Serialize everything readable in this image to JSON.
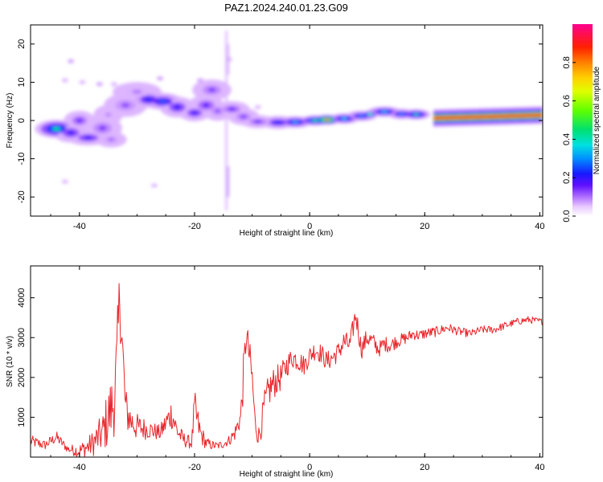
{
  "title": "PAZ1.2024.240.01.23.G09",
  "colors": {
    "snr_line": "#e8252a",
    "axis": "#000000",
    "colormap": [
      "#ffffff",
      "#e8c8ff",
      "#b070ff",
      "#5a10ff",
      "#1010ff",
      "#0090ff",
      "#00e0e0",
      "#00e060",
      "#80ff00",
      "#ffff00",
      "#ff9000",
      "#ff2000",
      "#ff00a0"
    ]
  },
  "chart_data": [
    {
      "type": "heatmap",
      "name": "spectrogram",
      "xlabel": "Height of straight line (km)",
      "ylabel": "Frequency (Hz)",
      "xlim": [
        -48.5,
        40.5
      ],
      "ylim": [
        -25,
        25
      ],
      "xticks": [
        "-40",
        "-20",
        "0",
        "20",
        "40"
      ],
      "xtick_values": [
        -40,
        -20,
        0,
        20,
        40
      ],
      "yticks": [
        "-20",
        "-10",
        "0",
        "10",
        "20"
      ],
      "ytick_values": [
        -20,
        -10,
        0,
        10,
        20
      ],
      "colorbar": {
        "label": "Normalized spectral amplitude",
        "range": [
          0,
          1
        ],
        "ticks": [
          "0.0",
          "0.2",
          "0.4",
          "0.6",
          "0.8"
        ],
        "tick_values": [
          0,
          0.2,
          0.4,
          0.6,
          0.8
        ]
      },
      "blobs": [
        {
          "x": -44,
          "y": -2.2,
          "rx": 2.2,
          "ry": 1.4,
          "a": 0.55
        },
        {
          "x": -41.5,
          "y": -3.2,
          "rx": 1.8,
          "ry": 1.5,
          "a": 0.3
        },
        {
          "x": -40,
          "y": 0,
          "rx": 1.6,
          "ry": 1.5,
          "a": 0.25
        },
        {
          "x": -38.5,
          "y": -4.5,
          "rx": 2.2,
          "ry": 1.2,
          "a": 0.3
        },
        {
          "x": -36,
          "y": -2,
          "rx": 2.0,
          "ry": 1.8,
          "a": 0.22
        },
        {
          "x": -34.5,
          "y": -5,
          "rx": 1.6,
          "ry": 1.2,
          "a": 0.18
        },
        {
          "x": -35,
          "y": 1.5,
          "rx": 1.5,
          "ry": 1.5,
          "a": 0.15
        },
        {
          "x": -32,
          "y": 4,
          "rx": 2.2,
          "ry": 1.8,
          "a": 0.2
        },
        {
          "x": -30,
          "y": 7.5,
          "rx": 2.5,
          "ry": 1.5,
          "a": 0.16
        },
        {
          "x": -28,
          "y": 5.5,
          "rx": 1.8,
          "ry": 1.3,
          "a": 0.35
        },
        {
          "x": -25.5,
          "y": 5,
          "rx": 2.0,
          "ry": 1.3,
          "a": 0.38
        },
        {
          "x": -23,
          "y": 3.5,
          "rx": 1.8,
          "ry": 1.6,
          "a": 0.3
        },
        {
          "x": -20,
          "y": 2,
          "rx": 1.6,
          "ry": 1.3,
          "a": 0.3
        },
        {
          "x": -18,
          "y": 4,
          "rx": 1.8,
          "ry": 1.6,
          "a": 0.26
        },
        {
          "x": -17,
          "y": 8,
          "rx": 2.0,
          "ry": 1.6,
          "a": 0.22
        },
        {
          "x": -16,
          "y": 2.5,
          "rx": 1.5,
          "ry": 1.5,
          "a": 0.2
        },
        {
          "x": -13.5,
          "y": 3,
          "rx": 1.8,
          "ry": 1.2,
          "a": 0.25
        },
        {
          "x": -11.5,
          "y": 1,
          "rx": 1.6,
          "ry": 1.3,
          "a": 0.22
        },
        {
          "x": -9,
          "y": -0.3,
          "rx": 1.8,
          "ry": 1.0,
          "a": 0.25
        },
        {
          "x": -5.5,
          "y": -0.5,
          "rx": 1.8,
          "ry": 1.0,
          "a": 0.35
        },
        {
          "x": -2.5,
          "y": -0.4,
          "rx": 1.8,
          "ry": 0.9,
          "a": 0.45
        },
        {
          "x": 1,
          "y": 0,
          "rx": 1.6,
          "ry": 0.8,
          "a": 0.6
        },
        {
          "x": 3,
          "y": 0.2,
          "rx": 1.5,
          "ry": 0.8,
          "a": 0.88
        },
        {
          "x": 6,
          "y": 0.5,
          "rx": 1.6,
          "ry": 0.8,
          "a": 0.5
        },
        {
          "x": 9,
          "y": 1.2,
          "rx": 1.6,
          "ry": 0.8,
          "a": 0.42
        },
        {
          "x": 10.5,
          "y": 1.6,
          "rx": 0.8,
          "ry": 0.6,
          "a": 0.7
        },
        {
          "x": 13,
          "y": 2.3,
          "rx": 1.8,
          "ry": 0.8,
          "a": 0.48
        },
        {
          "x": 16,
          "y": 1.7,
          "rx": 1.5,
          "ry": 0.8,
          "a": 0.42
        },
        {
          "x": 18.5,
          "y": 1.6,
          "rx": 1.5,
          "ry": 0.8,
          "a": 0.55
        }
      ],
      "ridge": {
        "x_start": 21.5,
        "x_end": 40.5,
        "y_start": 0.6,
        "y_end": 1.4,
        "a": 0.92
      },
      "spikes": [
        {
          "x": -14.5,
          "y_min": -23.5,
          "y_max": 23.5,
          "a": 0.12
        },
        {
          "x": -14.2,
          "y_min": -20,
          "y_max": -12,
          "a": 0.15
        },
        {
          "x": -14.2,
          "y_min": 12,
          "y_max": 20,
          "a": 0.12
        }
      ],
      "specks": [
        {
          "x": -41.5,
          "y": 15.5,
          "a": 0.12
        },
        {
          "x": -42.5,
          "y": 10.5,
          "a": 0.1
        },
        {
          "x": -39.5,
          "y": 10,
          "a": 0.1
        },
        {
          "x": -36.5,
          "y": 9.5,
          "a": 0.12
        },
        {
          "x": -34,
          "y": 9.5,
          "a": 0.1
        },
        {
          "x": -42.5,
          "y": -16,
          "a": 0.1
        },
        {
          "x": -27,
          "y": -17,
          "a": 0.1
        },
        {
          "x": -26,
          "y": 11,
          "a": 0.12
        },
        {
          "x": -19,
          "y": 10.5,
          "a": 0.12
        },
        {
          "x": -9,
          "y": 3.5,
          "a": 0.1
        },
        {
          "x": -14,
          "y": 16,
          "a": 0.1
        }
      ]
    },
    {
      "type": "line",
      "name": "snr",
      "xlabel": "Height of straight line (km)",
      "ylabel": "SNR (10 * v/v)",
      "xlim": [
        -48.5,
        40.5
      ],
      "ylim": [
        0,
        4800
      ],
      "xticks": [
        "-40",
        "-20",
        "0",
        "20",
        "40"
      ],
      "xtick_values": [
        -40,
        -20,
        0,
        20,
        40
      ],
      "yticks": [
        "1000",
        "2000",
        "3000",
        "4000"
      ],
      "ytick_values": [
        1000,
        2000,
        3000,
        4000
      ],
      "series": [
        {
          "x": [
            -48.5,
            -46,
            -44,
            -42,
            -40,
            -38,
            -36,
            -35,
            -34,
            -33.5,
            -33,
            -32,
            -31,
            -30,
            -28,
            -26,
            -24,
            -23,
            -22,
            -20.5,
            -20,
            -19,
            -18,
            -17,
            -16,
            -15,
            -14,
            -13,
            -12,
            -11.5,
            -11,
            -10,
            -9.5,
            -9,
            -8.5,
            -8,
            -7,
            -6,
            -5,
            -4,
            -3,
            -2,
            -1,
            0,
            1,
            2,
            3,
            4,
            5,
            6,
            7,
            8,
            9,
            10,
            11,
            12,
            13,
            14,
            15,
            16,
            17,
            18,
            19,
            20,
            22,
            24,
            26,
            28,
            30,
            32,
            34,
            35,
            36,
            38,
            40.5
          ],
          "y": [
            400,
            300,
            500,
            200,
            150,
            300,
            600,
            1000,
            1400,
            2200,
            4100,
            1200,
            900,
            750,
            700,
            600,
            1100,
            650,
            450,
            350,
            1200,
            600,
            350,
            300,
            280,
            330,
            420,
            600,
            1000,
            2000,
            3100,
            2000,
            900,
            500,
            700,
            1200,
            1700,
            1900,
            2000,
            2300,
            2500,
            2450,
            2300,
            2550,
            2700,
            2600,
            2400,
            2500,
            2650,
            2900,
            2800,
            3600,
            2700,
            3000,
            2900,
            2700,
            2850,
            2800,
            2900,
            2950,
            3000,
            3100,
            3050,
            3100,
            3150,
            3250,
            3150,
            3100,
            3200,
            3200,
            3300,
            3350,
            3400,
            3450,
            3400
          ],
          "amp": [
            150,
            120,
            150,
            100,
            200,
            300,
            500,
            800,
            900,
            1200,
            900,
            600,
            400,
            350,
            250,
            200,
            400,
            250,
            200,
            150,
            500,
            300,
            150,
            120,
            100,
            110,
            130,
            200,
            300,
            600,
            400,
            500,
            250,
            200,
            300,
            400,
            450,
            400,
            350,
            300,
            280,
            300,
            260,
            250,
            250,
            250,
            250,
            250,
            250,
            300,
            250,
            300,
            250,
            250,
            220,
            200,
            200,
            180,
            180,
            160,
            150,
            150,
            140,
            140,
            130,
            120,
            110,
            100,
            100,
            100,
            100,
            90,
            90,
            90,
            80
          ]
        }
      ]
    }
  ]
}
